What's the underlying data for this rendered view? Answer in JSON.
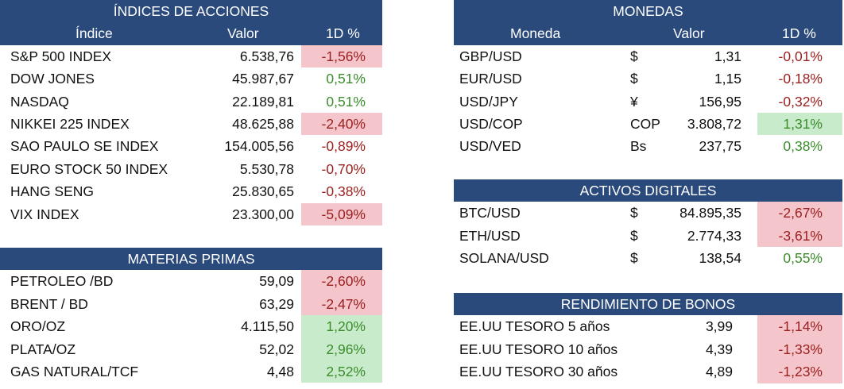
{
  "colors": {
    "header": "#2b4a7c",
    "red_fill": "#f4c6cb",
    "green_fill": "#c8ebcc",
    "neg_text": "#9b2020",
    "pos_text": "#3c8c2c"
  },
  "indices": {
    "title": "ÍNDICES DE ACCIONES",
    "headers": {
      "name": "Índice",
      "value": "Valor",
      "pct": "1D %"
    },
    "rows": [
      {
        "name": "S&P 500 INDEX",
        "value": "6.538,76",
        "pct": "-1,56%",
        "highlight": "red"
      },
      {
        "name": "DOW JONES",
        "value": "45.987,67",
        "pct": "0,51%",
        "highlight": null
      },
      {
        "name": "NASDAQ",
        "value": "22.189,81",
        "pct": "0,51%",
        "highlight": null
      },
      {
        "name": "NIKKEI 225 INDEX",
        "value": "48.625,88",
        "pct": "-2,40%",
        "highlight": "red"
      },
      {
        "name": "SAO PAULO SE INDEX",
        "value": "154.005,56",
        "pct": "-0,89%",
        "highlight": null
      },
      {
        "name": "EURO STOCK 50 INDEX",
        "value": "5.530,78",
        "pct": "-0,70%",
        "highlight": null
      },
      {
        "name": "HANG SENG",
        "value": "25.830,65",
        "pct": "-0,38%",
        "highlight": null
      },
      {
        "name": "VIX INDEX",
        "value": "23.300,00",
        "pct": "-5,09%",
        "highlight": "red"
      }
    ]
  },
  "commodities": {
    "title": "MATERIAS PRIMAS",
    "rows": [
      {
        "name": "PETROLEO /BD",
        "value": "59,09",
        "pct": "-2,60%",
        "highlight": "red"
      },
      {
        "name": "BRENT / BD",
        "value": "63,29",
        "pct": "-2,47%",
        "highlight": "red"
      },
      {
        "name": "ORO/OZ",
        "value": "4.115,50",
        "pct": "1,20%",
        "highlight": "green"
      },
      {
        "name": "PLATA/OZ",
        "value": "52,02",
        "pct": "2,96%",
        "highlight": "green"
      },
      {
        "name": "GAS NATURAL/TCF",
        "value": "4,48",
        "pct": "2,52%",
        "highlight": "green"
      }
    ]
  },
  "currencies": {
    "title": "MONEDAS",
    "headers": {
      "name": "Moneda",
      "value": "Valor",
      "pct": "1D %"
    },
    "rows": [
      {
        "name": "GBP/USD",
        "symbol": "$",
        "value": "1,31",
        "pct": "-0,01%",
        "highlight": null
      },
      {
        "name": "EUR/USD",
        "symbol": "$",
        "value": "1,15",
        "pct": "-0,18%",
        "highlight": null
      },
      {
        "name": "USD/JPY",
        "symbol": "¥",
        "value": "156,95",
        "pct": "-0,32%",
        "highlight": null
      },
      {
        "name": "USD/COP",
        "symbol": "COP",
        "value": "3.808,72",
        "pct": "1,31%",
        "highlight": "green"
      },
      {
        "name": "USD/VED",
        "symbol": "Bs",
        "value": "237,75",
        "pct": "0,38%",
        "highlight": null
      }
    ]
  },
  "digital": {
    "title": "ACTIVOS DIGITALES",
    "rows": [
      {
        "name": "BTC/USD",
        "symbol": "$",
        "value": "84.895,35",
        "pct": "-2,67%",
        "highlight": "red"
      },
      {
        "name": "ETH/USD",
        "symbol": "$",
        "value": "2.774,33",
        "pct": "-3,61%",
        "highlight": "red"
      },
      {
        "name": "SOLANA/USD",
        "symbol": "$",
        "value": "138,54",
        "pct": "0,55%",
        "highlight": null
      }
    ]
  },
  "bonds": {
    "title": "RENDIMIENTO DE BONOS",
    "rows": [
      {
        "name": "EE.UU TESORO 5 años",
        "value": "3,99",
        "pct": "-1,14%",
        "highlight": "red"
      },
      {
        "name": "EE.UU TESORO 10 años",
        "value": "4,39",
        "pct": "-1,33%",
        "highlight": "red"
      },
      {
        "name": "EE.UU TESORO 30 años",
        "value": "4,89",
        "pct": "-1,23%",
        "highlight": "red"
      }
    ]
  }
}
